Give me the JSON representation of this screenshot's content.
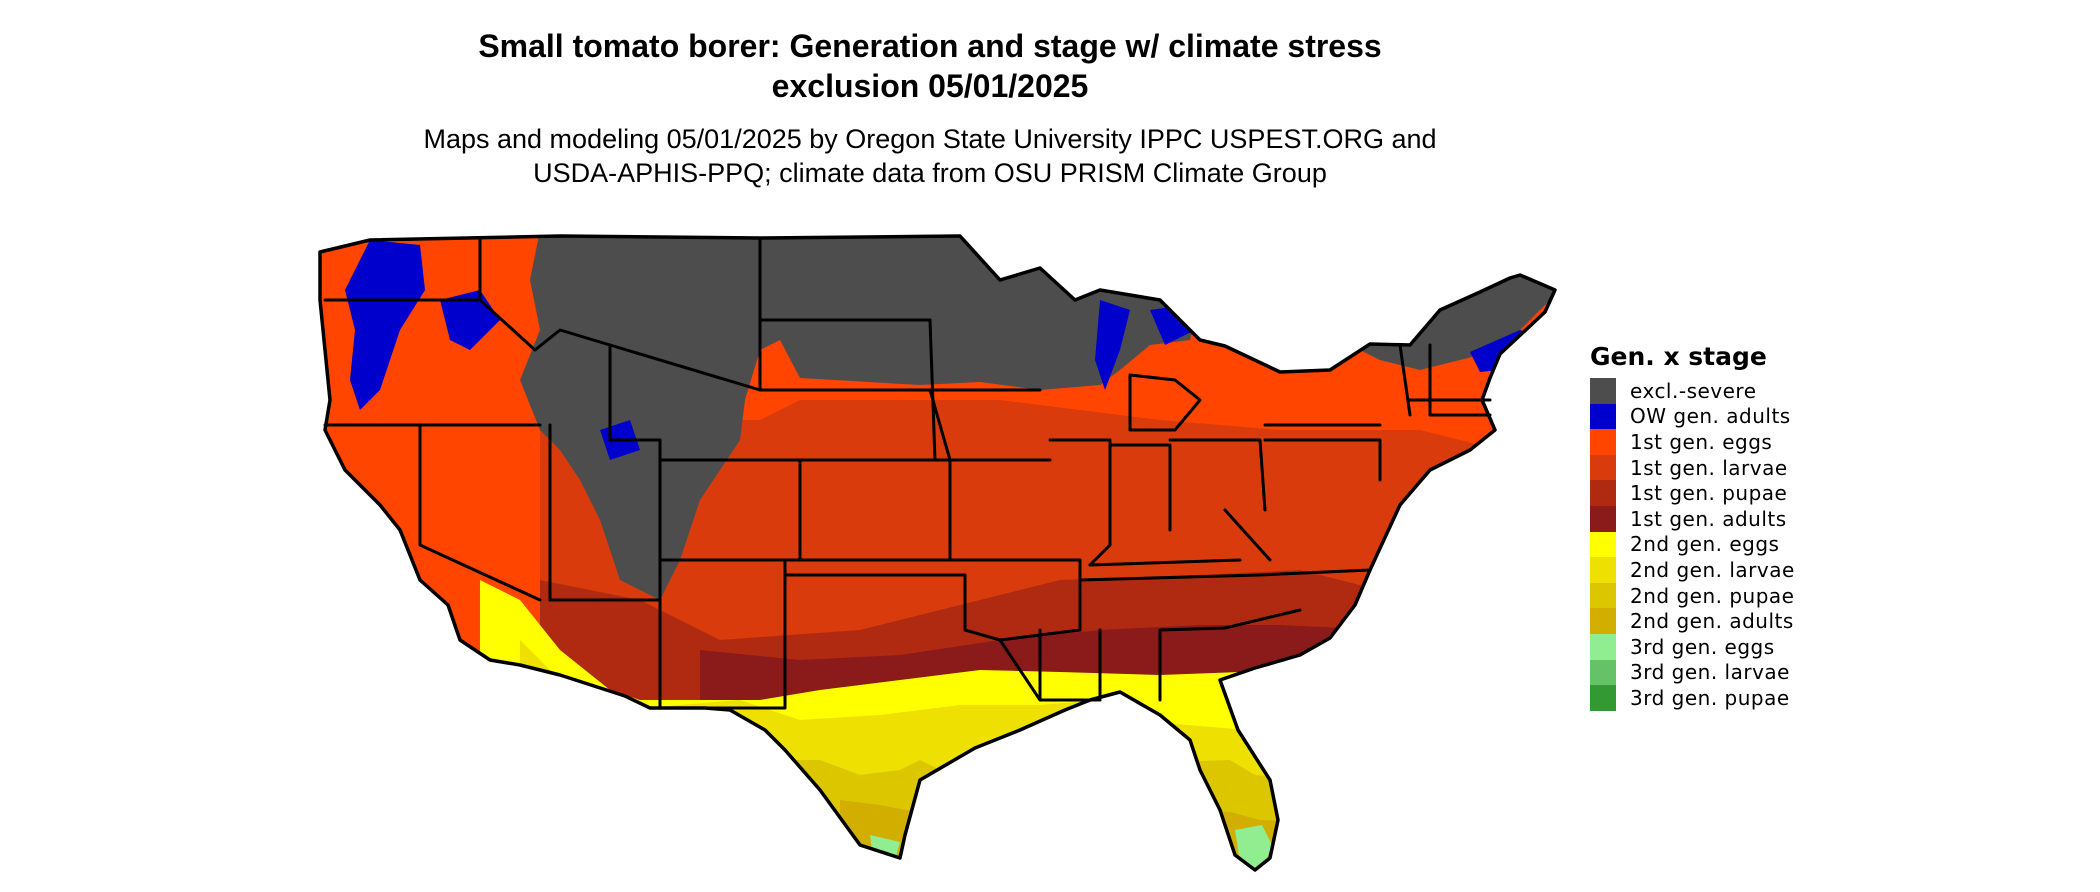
{
  "map": {
    "title_lines": [
      "Small tomato borer: Generation and stage w/ climate stress",
      "exclusion 05/01/2025"
    ],
    "subtitle_lines": [
      "Maps and modeling 05/01/2025 by Oregon State University IPPC USPEST.ORG and",
      "USDA-APHIS-PPQ; climate data from OSU PRISM Climate Group"
    ],
    "region": "Contiguous United States",
    "legend": {
      "title": "Gen. x stage",
      "entries": [
        {
          "label": "excl.-severe",
          "color": "#4d4d4d"
        },
        {
          "label": "OW gen. adults",
          "color": "#0000cc"
        },
        {
          "label": "1st gen. eggs",
          "color": "#ff4500"
        },
        {
          "label": "1st gen. larvae",
          "color": "#d93b0c"
        },
        {
          "label": "1st gen. pupae",
          "color": "#b02a12"
        },
        {
          "label": "1st gen. adults",
          "color": "#8b1a1a"
        },
        {
          "label": "2nd gen. eggs",
          "color": "#ffff00"
        },
        {
          "label": "2nd gen. larvae",
          "color": "#eee000"
        },
        {
          "label": "2nd gen. pupae",
          "color": "#dcc600"
        },
        {
          "label": "2nd gen. adults",
          "color": "#d2ae00"
        },
        {
          "label": "3rd gen. eggs",
          "color": "#90ee90"
        },
        {
          "label": "3rd gen. larvae",
          "color": "#66c266"
        },
        {
          "label": "3rd gen. pupae",
          "color": "#339933"
        }
      ]
    }
  }
}
